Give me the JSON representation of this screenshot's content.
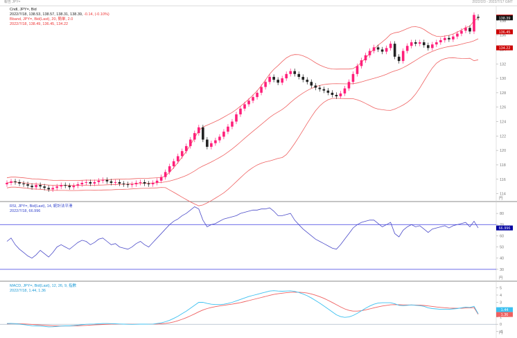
{
  "header": {
    "left": "報告 JPY=",
    "right": "2022/2/3 - 2022/7/17 GMT"
  },
  "price_legend": {
    "line1": "Cndl, JPY=, Bid",
    "line2_prefix": "2022/7/18, 138.53, 138.57, 138.31, 138.39,",
    "line2_change": "-0.14, (-0.10%)",
    "line3": "Bband, JPY=, Bid(Last), 20, 簡単, 2.0",
    "line4": "2022/7/18, 138.49, 136.45, 134.22"
  },
  "rsi_legend": {
    "line1": "RSI, JPY=, Bid(Last), 14, 統計法平滑",
    "line2": "2022/7/18, 66.996"
  },
  "macd_legend": {
    "line1": "MACD, JPY=, Bid(Last), 12, 26, 9, 指數",
    "line2": "2022/7/18, 1.44, 1.36"
  },
  "axis_unit": "円",
  "colors": {
    "up": "#ff1f7a",
    "down": "#222222",
    "band": "#ef6060",
    "rsi": "#4a4ac8",
    "rsi_level": "#3a3ae0",
    "macd": "#3cc0f0",
    "signal": "#ef6060"
  },
  "price_tags": [
    {
      "label": "138.49",
      "value": 138.49,
      "color": "#cc0000"
    },
    {
      "label": "138.39",
      "value": 138.39,
      "color": "#111111"
    },
    {
      "label": "136.45",
      "value": 136.45,
      "color": "#cc0000"
    },
    {
      "label": "134.22",
      "value": 134.22,
      "color": "#cc0000"
    }
  ],
  "rsi_tag": {
    "label": "66.996",
    "color": "#0000a0"
  },
  "macd_tags": [
    {
      "label": "1.44",
      "color": "#3cc0f0"
    },
    {
      "label": "1.36",
      "color": "#ef6060"
    }
  ],
  "chart_data": [
    {
      "type": "candlestick",
      "title": "Cndl, JPY=, Bid",
      "ylim": [
        113,
        140
      ],
      "yticks": [
        114,
        116,
        118,
        120,
        122,
        124,
        126,
        128,
        130,
        132,
        134,
        136,
        138
      ],
      "ytick_labels": [
        "114",
        "116",
        "118",
        "120",
        "122",
        "124",
        "126",
        "128",
        "130",
        "132",
        "134",
        "136",
        "138"
      ],
      "close": [
        115.5,
        115.7,
        115.6,
        115.4,
        115.3,
        115.1,
        114.9,
        115.2,
        115.0,
        114.8,
        114.6,
        114.8,
        115.0,
        115.2,
        115.1,
        114.9,
        115.1,
        115.3,
        115.5,
        115.6,
        115.4,
        115.6,
        115.8,
        115.9,
        115.7,
        115.5,
        115.6,
        115.4,
        115.3,
        115.2,
        115.3,
        115.5,
        115.6,
        115.4,
        115.3,
        115.5,
        115.8,
        116.3,
        117.0,
        117.8,
        118.5,
        119.2,
        119.9,
        120.6,
        121.5,
        122.4,
        123.2,
        121.5,
        120.5,
        121.0,
        121.4,
        121.9,
        122.6,
        123.3,
        124.0,
        125.0,
        125.8,
        126.4,
        126.9,
        127.4,
        128.0,
        128.8,
        129.5,
        130.2,
        129.8,
        129.4,
        130.0,
        130.6,
        131.0,
        130.6,
        130.2,
        129.8,
        129.5,
        129.0,
        128.7,
        128.5,
        128.3,
        128.0,
        127.7,
        127.5,
        127.9,
        128.6,
        129.5,
        130.6,
        131.7,
        132.5,
        133.2,
        133.8,
        134.3,
        134.0,
        133.7,
        134.2,
        134.8,
        133.0,
        132.4,
        133.8,
        134.5,
        135.0,
        134.8,
        135.0,
        134.6,
        134.2,
        134.7,
        135.0,
        135.3,
        135.6,
        135.4,
        135.8,
        136.2,
        136.6,
        137.0,
        136.5,
        138.8,
        138.39
      ],
      "open": [
        115.3,
        115.5,
        115.7,
        115.6,
        115.4,
        115.3,
        115.1,
        114.9,
        115.2,
        115.0,
        114.8,
        114.6,
        114.8,
        115.0,
        115.2,
        115.1,
        114.9,
        115.1,
        115.3,
        115.5,
        115.6,
        115.4,
        115.6,
        115.8,
        115.9,
        115.7,
        115.5,
        115.6,
        115.4,
        115.3,
        115.2,
        115.3,
        115.5,
        115.6,
        115.4,
        115.3,
        115.5,
        115.8,
        116.3,
        117.0,
        117.8,
        118.5,
        119.2,
        119.9,
        120.6,
        121.5,
        122.4,
        123.2,
        121.5,
        120.5,
        121.0,
        121.4,
        121.9,
        122.6,
        123.3,
        124.0,
        125.0,
        125.8,
        126.4,
        126.9,
        127.4,
        128.0,
        128.8,
        129.5,
        130.2,
        129.8,
        129.4,
        130.0,
        130.6,
        131.0,
        130.6,
        130.2,
        129.8,
        129.5,
        129.0,
        128.7,
        128.5,
        128.3,
        128.0,
        127.7,
        127.5,
        127.9,
        128.6,
        129.5,
        130.6,
        131.7,
        132.5,
        133.2,
        133.8,
        134.3,
        134.0,
        133.7,
        134.2,
        134.8,
        133.0,
        132.4,
        133.8,
        134.5,
        135.0,
        134.8,
        135.0,
        134.6,
        134.2,
        134.7,
        135.0,
        135.3,
        135.6,
        135.4,
        135.8,
        136.2,
        136.6,
        137.0,
        136.5,
        138.53
      ],
      "bollinger": {
        "period": 20,
        "stdev": 2.0,
        "last_upper": 138.49,
        "last_middle": 136.45,
        "last_lower": 134.22
      }
    },
    {
      "type": "line",
      "title": "RSI, JPY=, Bid(Last), 14",
      "ylim": [
        20,
        90
      ],
      "yticks": [
        30,
        40,
        50,
        60,
        70,
        80
      ],
      "ytick_labels": [
        "30",
        "40",
        "50",
        "60",
        "70",
        "80"
      ],
      "levels": [
        70,
        30
      ],
      "series": [
        {
          "values": [
            55,
            58,
            52,
            48,
            45,
            42,
            40,
            43,
            47,
            44,
            41,
            45,
            50,
            52,
            50,
            48,
            51,
            54,
            56,
            55,
            52,
            54,
            57,
            58,
            55,
            52,
            53,
            50,
            49,
            48,
            50,
            53,
            55,
            52,
            50,
            54,
            58,
            62,
            66,
            70,
            73,
            75,
            78,
            80,
            83,
            86,
            84,
            74,
            68,
            70,
            71,
            73,
            75,
            76,
            77,
            78,
            80,
            81,
            82,
            83,
            83,
            84,
            84,
            85,
            82,
            78,
            78,
            79,
            80,
            74,
            70,
            66,
            63,
            60,
            57,
            55,
            53,
            51,
            49,
            48,
            52,
            57,
            62,
            67,
            70,
            72,
            73,
            74,
            74,
            71,
            68,
            70,
            72,
            62,
            59,
            65,
            68,
            70,
            68,
            69,
            66,
            63,
            66,
            67,
            68,
            69,
            67,
            69,
            70,
            71,
            72,
            68,
            73,
            67.0
          ]
        }
      ]
    },
    {
      "type": "line",
      "title": "MACD, JPY=, Bid(Last), 12, 26, 9",
      "ylim": [
        -1.5,
        5.8
      ],
      "yticks": [
        -1,
        0,
        1,
        2,
        3,
        4,
        5
      ],
      "ytick_labels": [
        "-1",
        "0",
        "1",
        "2",
        "3",
        "4",
        "5"
      ],
      "series": [
        {
          "values": [
            0.1,
            0.12,
            0.08,
            0.02,
            -0.05,
            -0.12,
            -0.2,
            -0.22,
            -0.25,
            -0.3,
            -0.35,
            -0.34,
            -0.3,
            -0.25,
            -0.22,
            -0.22,
            -0.18,
            -0.12,
            -0.06,
            0.0,
            0.02,
            0.04,
            0.07,
            0.1,
            0.1,
            0.08,
            0.06,
            0.04,
            0.02,
            0.0,
            -0.01,
            0.0,
            0.02,
            0.02,
            0.01,
            0.03,
            0.1,
            0.2,
            0.35,
            0.55,
            0.8,
            1.1,
            1.45,
            1.8,
            2.2,
            2.6,
            3.0,
            3.0,
            2.85,
            2.75,
            2.7,
            2.7,
            2.75,
            2.85,
            3.0,
            3.2,
            3.4,
            3.6,
            3.8,
            3.95,
            4.1,
            4.25,
            4.4,
            4.55,
            4.6,
            4.55,
            4.52,
            4.55,
            4.58,
            4.5,
            4.35,
            4.15,
            3.9,
            3.6,
            3.25,
            2.9,
            2.5,
            2.1,
            1.7,
            1.3,
            1.05,
            0.95,
            1.0,
            1.2,
            1.5,
            1.85,
            2.2,
            2.5,
            2.75,
            2.9,
            2.95,
            2.95,
            2.95,
            2.8,
            2.6,
            2.55,
            2.6,
            2.65,
            2.6,
            2.55,
            2.45,
            2.25,
            2.15,
            2.1,
            2.05,
            2.05,
            2.05,
            2.1,
            2.15,
            2.25,
            2.35,
            2.3,
            2.45,
            1.44
          ]
        },
        {
          "values": [
            0.05,
            0.08,
            0.08,
            0.07,
            0.05,
            0.02,
            -0.02,
            -0.06,
            -0.1,
            -0.14,
            -0.18,
            -0.21,
            -0.23,
            -0.24,
            -0.24,
            -0.24,
            -0.23,
            -0.21,
            -0.18,
            -0.15,
            -0.12,
            -0.09,
            -0.06,
            -0.03,
            -0.01,
            0.01,
            0.02,
            0.02,
            0.02,
            0.02,
            0.01,
            0.01,
            0.01,
            0.01,
            0.01,
            0.02,
            0.03,
            0.06,
            0.12,
            0.2,
            0.32,
            0.48,
            0.68,
            0.9,
            1.15,
            1.42,
            1.7,
            1.95,
            2.15,
            2.3,
            2.42,
            2.51,
            2.6,
            2.68,
            2.76,
            2.86,
            2.97,
            3.1,
            3.24,
            3.38,
            3.52,
            3.67,
            3.81,
            3.96,
            4.08,
            4.18,
            4.25,
            4.32,
            4.37,
            4.4,
            4.39,
            4.35,
            4.27,
            4.15,
            3.98,
            3.78,
            3.55,
            3.28,
            2.98,
            2.68,
            2.38,
            2.1,
            1.9,
            1.8,
            1.8,
            1.86,
            1.97,
            2.1,
            2.25,
            2.38,
            2.5,
            2.59,
            2.66,
            2.69,
            2.67,
            2.65,
            2.64,
            2.64,
            2.63,
            2.61,
            2.58,
            2.51,
            2.44,
            2.37,
            2.31,
            2.26,
            2.22,
            2.2,
            2.19,
            2.2,
            2.23,
            2.24,
            2.28,
            1.36
          ]
        }
      ]
    }
  ]
}
